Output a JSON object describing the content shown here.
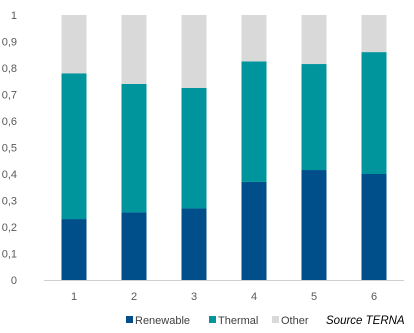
{
  "chart_data": {
    "type": "bar",
    "stacked": true,
    "categories": [
      "1",
      "2",
      "3",
      "4",
      "5",
      "6"
    ],
    "series": [
      {
        "name": "Renewable",
        "values": [
          0.23,
          0.255,
          0.27,
          0.37,
          0.415,
          0.4
        ]
      },
      {
        "name": "Thermal",
        "values": [
          0.55,
          0.485,
          0.455,
          0.455,
          0.4,
          0.46
        ]
      },
      {
        "name": "Other",
        "values": [
          0.22,
          0.26,
          0.275,
          0.175,
          0.185,
          0.14
        ]
      }
    ],
    "colors": [
      "#004f8b",
      "#00959d",
      "#d9d9d9"
    ],
    "ylim": [
      0,
      1
    ],
    "yticks": [
      "0",
      "0,1",
      "0,2",
      "0,3",
      "0,4",
      "0,5",
      "0,6",
      "0,7",
      "0,8",
      "0,9",
      "1"
    ],
    "grid": false,
    "legend_position": "bottom",
    "source": "Source TERNA"
  }
}
